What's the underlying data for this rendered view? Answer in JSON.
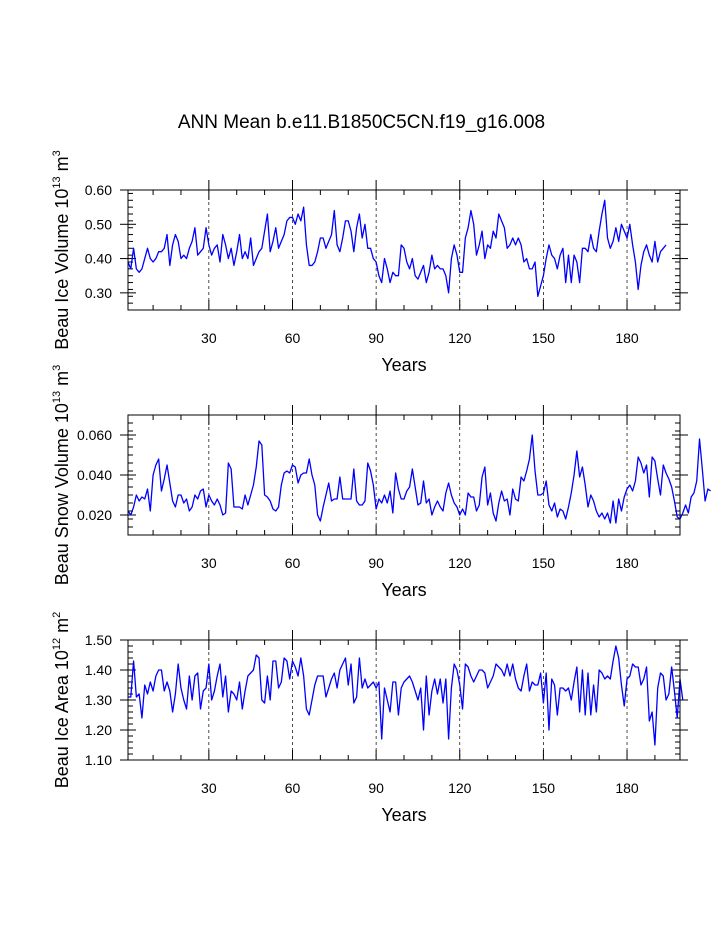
{
  "title": "ANN Mean b.e11.B1850C5CN.f19_g16.008",
  "colors": {
    "line": "#0000ff",
    "axis": "#000000",
    "background": "#ffffff"
  },
  "chart_data": [
    {
      "type": "line",
      "title": "",
      "xlabel": "Years",
      "ylabel_main": "Beau Ice Volume 10",
      "ylabel_exp": "13",
      "ylabel_unit": " m",
      "ylabel_unit_exp": "3",
      "xlim": [
        1,
        199
      ],
      "ylim": [
        0.25,
        0.6
      ],
      "xticks": [
        30,
        60,
        90,
        120,
        150,
        180
      ],
      "xtick_labels": [
        "30",
        "60",
        "90",
        "120",
        "150",
        "180"
      ],
      "yticks": [
        0.3,
        0.4,
        0.5,
        0.6
      ],
      "ytick_labels": [
        "0.30",
        "0.40",
        "0.50",
        "0.60"
      ],
      "grid": "vertical dashed at major x ticks",
      "series": [
        {
          "name": "Beau Ice Volume",
          "color": "#0000ff",
          "values": [
            0.39,
            0.37,
            0.43,
            0.37,
            0.36,
            0.37,
            0.4,
            0.43,
            0.4,
            0.39,
            0.4,
            0.42,
            0.42,
            0.43,
            0.47,
            0.38,
            0.44,
            0.47,
            0.45,
            0.4,
            0.41,
            0.4,
            0.43,
            0.45,
            0.49,
            0.41,
            0.42,
            0.43,
            0.49,
            0.44,
            0.41,
            0.43,
            0.44,
            0.39,
            0.47,
            0.44,
            0.4,
            0.43,
            0.38,
            0.42,
            0.47,
            0.4,
            0.42,
            0.4,
            0.46,
            0.38,
            0.4,
            0.42,
            0.43,
            0.48,
            0.53,
            0.42,
            0.45,
            0.49,
            0.43,
            0.45,
            0.47,
            0.51,
            0.52,
            0.52,
            0.5,
            0.53,
            0.51,
            0.55,
            0.44,
            0.38,
            0.38,
            0.39,
            0.42,
            0.46,
            0.46,
            0.43,
            0.45,
            0.47,
            0.54,
            0.44,
            0.42,
            0.46,
            0.51,
            0.51,
            0.48,
            0.42,
            0.49,
            0.53,
            0.46,
            0.5,
            0.43,
            0.43,
            0.4,
            0.39,
            0.35,
            0.33,
            0.4,
            0.37,
            0.33,
            0.36,
            0.35,
            0.35,
            0.44,
            0.43,
            0.39,
            0.37,
            0.4,
            0.35,
            0.34,
            0.36,
            0.38,
            0.33,
            0.36,
            0.41,
            0.37,
            0.38,
            0.37,
            0.37,
            0.35,
            0.3,
            0.4,
            0.44,
            0.41,
            0.36,
            0.36,
            0.46,
            0.49,
            0.54,
            0.5,
            0.41,
            0.44,
            0.48,
            0.4,
            0.44,
            0.43,
            0.48,
            0.46,
            0.53,
            0.51,
            0.49,
            0.43,
            0.44,
            0.46,
            0.44,
            0.46,
            0.44,
            0.39,
            0.4,
            0.37,
            0.37,
            0.39,
            0.29,
            0.32,
            0.35,
            0.4,
            0.44,
            0.41,
            0.4,
            0.37,
            0.41,
            0.43,
            0.33,
            0.41,
            0.33,
            0.41,
            0.39,
            0.33,
            0.43,
            0.43,
            0.42,
            0.47,
            0.43,
            0.42,
            0.48,
            0.53,
            0.57,
            0.46,
            0.43,
            0.45,
            0.49,
            0.45,
            0.5,
            0.48,
            0.46,
            0.5,
            0.44,
            0.39,
            0.31,
            0.38,
            0.42,
            0.44,
            0.41,
            0.39,
            0.45,
            0.39,
            0.42,
            0.43,
            0.44
          ]
        }
      ]
    },
    {
      "type": "line",
      "title": "",
      "xlabel": "Years",
      "ylabel_main": "Beau Snow Volume 10",
      "ylabel_exp": "13",
      "ylabel_unit": " m",
      "ylabel_unit_exp": "3",
      "xlim": [
        1,
        199
      ],
      "ylim": [
        0.01,
        0.07
      ],
      "xticks": [
        30,
        60,
        90,
        120,
        150,
        180
      ],
      "xtick_labels": [
        "30",
        "60",
        "90",
        "120",
        "150",
        "180"
      ],
      "yticks": [
        0.02,
        0.04,
        0.06
      ],
      "ytick_labels": [
        "0.020",
        "0.040",
        "0.060"
      ],
      "grid": "vertical dashed at major x ticks",
      "series": [
        {
          "name": "Beau Snow Volume",
          "color": "#0000ff",
          "values": [
            0.022,
            0.02,
            0.024,
            0.03,
            0.027,
            0.029,
            0.028,
            0.033,
            0.022,
            0.04,
            0.045,
            0.048,
            0.032,
            0.038,
            0.045,
            0.036,
            0.027,
            0.024,
            0.03,
            0.03,
            0.026,
            0.028,
            0.022,
            0.024,
            0.03,
            0.028,
            0.032,
            0.033,
            0.024,
            0.03,
            0.027,
            0.025,
            0.028,
            0.025,
            0.02,
            0.021,
            0.046,
            0.043,
            0.024,
            0.024,
            0.024,
            0.023,
            0.03,
            0.025,
            0.03,
            0.035,
            0.044,
            0.057,
            0.055,
            0.03,
            0.029,
            0.027,
            0.023,
            0.022,
            0.024,
            0.035,
            0.041,
            0.042,
            0.041,
            0.045,
            0.044,
            0.036,
            0.04,
            0.041,
            0.041,
            0.048,
            0.04,
            0.035,
            0.02,
            0.017,
            0.024,
            0.03,
            0.036,
            0.027,
            0.028,
            0.028,
            0.039,
            0.028,
            0.028,
            0.028,
            0.028,
            0.043,
            0.027,
            0.025,
            0.025,
            0.027,
            0.046,
            0.042,
            0.035,
            0.023,
            0.028,
            0.026,
            0.03,
            0.026,
            0.032,
            0.021,
            0.041,
            0.033,
            0.028,
            0.028,
            0.032,
            0.034,
            0.043,
            0.034,
            0.025,
            0.026,
            0.037,
            0.026,
            0.028,
            0.02,
            0.024,
            0.027,
            0.024,
            0.022,
            0.031,
            0.036,
            0.03,
            0.026,
            0.024,
            0.02,
            0.023,
            0.02,
            0.031,
            0.029,
            0.029,
            0.022,
            0.025,
            0.039,
            0.044,
            0.025,
            0.031,
            0.021,
            0.017,
            0.026,
            0.032,
            0.027,
            0.028,
            0.02,
            0.033,
            0.028,
            0.027,
            0.039,
            0.037,
            0.042,
            0.048,
            0.06,
            0.042,
            0.03,
            0.03,
            0.031,
            0.037,
            0.025,
            0.022,
            0.026,
            0.019,
            0.023,
            0.022,
            0.018,
            0.024,
            0.031,
            0.04,
            0.052,
            0.039,
            0.044,
            0.035,
            0.024,
            0.03,
            0.027,
            0.022,
            0.019,
            0.021,
            0.018,
            0.021,
            0.016,
            0.027,
            0.016,
            0.028,
            0.022,
            0.029,
            0.033,
            0.035,
            0.032,
            0.037,
            0.049,
            0.046,
            0.041,
            0.045,
            0.029,
            0.049,
            0.047,
            0.038,
            0.03,
            0.045,
            0.041,
            0.038,
            0.034,
            0.027,
            0.019,
            0.018,
            0.021,
            0.025,
            0.021,
            0.029,
            0.031,
            0.037,
            0.058,
            0.043,
            0.027,
            0.033,
            0.032
          ]
        }
      ]
    },
    {
      "type": "line",
      "title": "",
      "xlabel": "Years",
      "ylabel_main": "Beau Ice Area 10",
      "ylabel_exp": "12",
      "ylabel_unit": " m",
      "ylabel_unit_exp": "2",
      "xlim": [
        1,
        199
      ],
      "ylim": [
        1.1,
        1.5
      ],
      "xticks": [
        30,
        60,
        90,
        120,
        150,
        180
      ],
      "xtick_labels": [
        "30",
        "60",
        "90",
        "120",
        "150",
        "180"
      ],
      "yticks": [
        1.1,
        1.2,
        1.3,
        1.4,
        1.5
      ],
      "ytick_labels": [
        "1.10",
        "1.20",
        "1.30",
        "1.40",
        "1.50"
      ],
      "grid": "vertical dashed at major x ticks",
      "series": [
        {
          "name": "Beau Ice Area",
          "color": "#0000ff",
          "values": [
            1.31,
            1.31,
            1.43,
            1.31,
            1.32,
            1.24,
            1.35,
            1.32,
            1.36,
            1.33,
            1.38,
            1.4,
            1.4,
            1.33,
            1.36,
            1.33,
            1.26,
            1.32,
            1.42,
            1.34,
            1.3,
            1.27,
            1.38,
            1.3,
            1.38,
            1.39,
            1.27,
            1.33,
            1.34,
            1.42,
            1.3,
            1.33,
            1.38,
            1.42,
            1.31,
            1.38,
            1.26,
            1.33,
            1.32,
            1.3,
            1.36,
            1.27,
            1.33,
            1.38,
            1.39,
            1.4,
            1.45,
            1.44,
            1.3,
            1.29,
            1.38,
            1.3,
            1.43,
            1.43,
            1.34,
            1.36,
            1.44,
            1.43,
            1.37,
            1.43,
            1.41,
            1.38,
            1.44,
            1.38,
            1.27,
            1.25,
            1.3,
            1.35,
            1.38,
            1.38,
            1.38,
            1.31,
            1.34,
            1.37,
            1.39,
            1.34,
            1.4,
            1.42,
            1.44,
            1.35,
            1.42,
            1.29,
            1.31,
            1.44,
            1.34,
            1.37,
            1.34,
            1.35,
            1.36,
            1.34,
            1.36,
            1.17,
            1.34,
            1.3,
            1.26,
            1.36,
            1.36,
            1.25,
            1.34,
            1.36,
            1.37,
            1.38,
            1.36,
            1.33,
            1.3,
            1.34,
            1.2,
            1.38,
            1.25,
            1.33,
            1.37,
            1.32,
            1.37,
            1.29,
            1.37,
            1.17,
            1.34,
            1.42,
            1.4,
            1.35,
            1.27,
            1.42,
            1.41,
            1.38,
            1.36,
            1.38,
            1.4,
            1.4,
            1.39,
            1.34,
            1.36,
            1.38,
            1.42,
            1.41,
            1.4,
            1.38,
            1.42,
            1.38,
            1.42,
            1.37,
            1.34,
            1.33,
            1.38,
            1.42,
            1.33,
            1.36,
            1.35,
            1.35,
            1.39,
            1.29,
            1.39,
            1.2,
            1.37,
            1.35,
            1.25,
            1.34,
            1.34,
            1.33,
            1.34,
            1.3,
            1.36,
            1.41,
            1.26,
            1.4,
            1.25,
            1.39,
            1.25,
            1.35,
            1.26,
            1.4,
            1.39,
            1.37,
            1.38,
            1.37,
            1.43,
            1.48,
            1.44,
            1.35,
            1.28,
            1.37,
            1.38,
            1.42,
            1.41,
            1.41,
            1.35,
            1.37,
            1.41,
            1.23,
            1.26,
            1.15,
            1.34,
            1.39,
            1.38,
            1.3,
            1.32,
            1.41,
            1.33,
            1.24,
            1.37,
            1.3
          ]
        }
      ]
    }
  ]
}
